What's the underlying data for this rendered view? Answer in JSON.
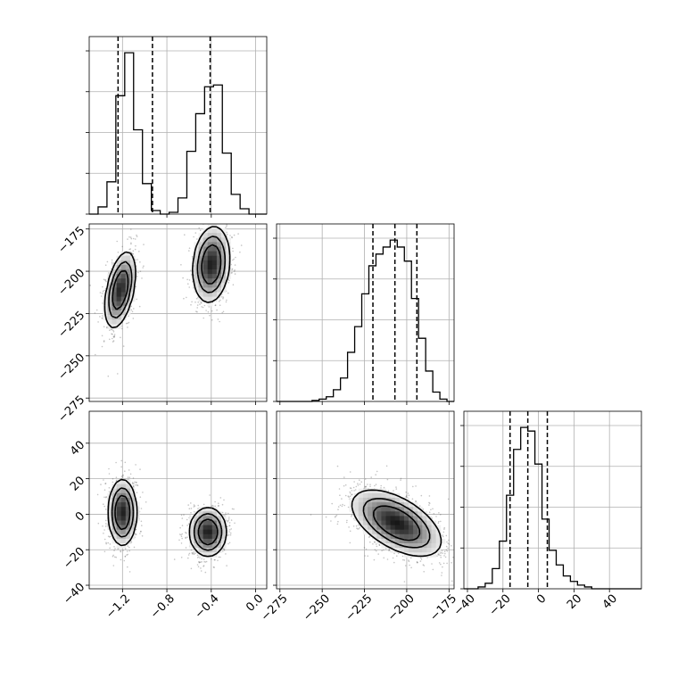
{
  "chart_data": {
    "type": "corner",
    "grid": true,
    "parameters": [
      {
        "id": "p0",
        "range": [
          -1.5,
          0.1
        ],
        "ticks": [
          -1.2,
          -0.8,
          -0.4,
          0.0
        ],
        "tick_labels": [
          "−1.2",
          "−0.8",
          "−0.4",
          "0.0"
        ],
        "quantiles": [
          -1.24,
          -0.93,
          -0.41
        ],
        "hist_bin_edges": [
          -1.5,
          -1.42,
          -1.34,
          -1.26,
          -1.18,
          -1.1,
          -1.02,
          -0.94,
          -0.86,
          -0.78,
          -0.7,
          -0.62,
          -0.54,
          -0.46,
          -0.38,
          -0.3,
          -0.22,
          -0.14,
          -0.06,
          0.02,
          0.1
        ],
        "hist_counts": [
          0,
          20,
          90,
          330,
          450,
          235,
          85,
          10,
          0,
          5,
          45,
          175,
          280,
          355,
          360,
          170,
          55,
          15,
          0,
          0
        ],
        "hist_max_tick_count": 400,
        "hist_ticks_count": 4
      },
      {
        "id": "p1",
        "range": [
          -277,
          -172
        ],
        "tick_range_note": "",
        "ticks": [
          -275,
          -250,
          -225,
          -200,
          -175
        ],
        "tick_labels": [
          "−275",
          "−250",
          "−225",
          "−200",
          "−175"
        ],
        "quantiles": [
          -220,
          -207,
          -194
        ],
        "hist_bin_edges": [
          -277,
          -272.8,
          -268.6,
          -264.4,
          -260.2,
          -256,
          -251.8,
          -247.6,
          -243.4,
          -239.2,
          -235,
          -230.8,
          -226.6,
          -222.4,
          -218.2,
          -214,
          -209.8,
          -205.6,
          -201.4,
          -197.2,
          -193,
          -188.8,
          -184.6,
          -180.4,
          -176.2,
          -172
        ],
        "hist_counts": [
          0,
          0,
          0,
          0,
          0,
          2,
          5,
          10,
          25,
          50,
          105,
          160,
          230,
          290,
          315,
          330,
          345,
          330,
          300,
          220,
          135,
          65,
          20,
          5,
          0
        ],
        "hist_ticks_count": 4
      },
      {
        "id": "p2",
        "range": [
          -42,
          58
        ],
        "ticks": [
          -40,
          -20,
          0,
          20,
          40
        ],
        "tick_labels": [
          "−40",
          "−20",
          "0",
          "20",
          "40"
        ],
        "quantiles": [
          -16,
          -6,
          5
        ],
        "hist_bin_edges": [
          -42,
          -38,
          -34,
          -30,
          -26,
          -22,
          -18,
          -14,
          -10,
          -6,
          -2,
          2,
          6,
          10,
          14,
          18,
          22,
          26,
          30,
          34,
          38,
          42,
          46,
          50,
          54,
          58
        ],
        "hist_counts": [
          0,
          0,
          5,
          15,
          55,
          130,
          255,
          380,
          440,
          430,
          340,
          190,
          105,
          65,
          35,
          20,
          10,
          5,
          0,
          0,
          0,
          0,
          0,
          0,
          0
        ],
        "hist_ticks_count": 4
      }
    ],
    "joint_panels": [
      {
        "x": "p0",
        "y": "p1",
        "modes": [
          {
            "mean": [
              -1.22,
              -211
            ],
            "sd": [
              0.07,
              11.5
            ],
            "rho": 0.45,
            "weight": 0.5
          },
          {
            "mean": [
              -0.4,
              -196
            ],
            "sd": [
              0.085,
              11.5
            ],
            "rho": 0.15,
            "weight": 0.5
          }
        ]
      },
      {
        "x": "p0",
        "y": "p2",
        "modes": [
          {
            "mean": [
              -1.2,
              1
            ],
            "sd": [
              0.065,
              9.5
            ],
            "rho": 0.0,
            "weight": 0.5
          },
          {
            "mean": [
              -0.43,
              -10
            ],
            "sd": [
              0.085,
              7
            ],
            "rho": 0.0,
            "weight": 0.5
          }
        ]
      },
      {
        "x": "p1",
        "y": "p2",
        "modes": [
          {
            "mean": [
              -206,
              -5
            ],
            "sd": [
              13.5,
              9.5
            ],
            "rho": -0.55,
            "weight": 1.0
          }
        ]
      }
    ],
    "contour_levels": [
      0.6,
      0.35,
      0.15
    ],
    "colors": {
      "axes": "#000000",
      "grid": "#b0b0b0",
      "line": "#000000",
      "scatter": "#555555",
      "density_dark": "#000000",
      "density_light": "#ffffff"
    }
  }
}
